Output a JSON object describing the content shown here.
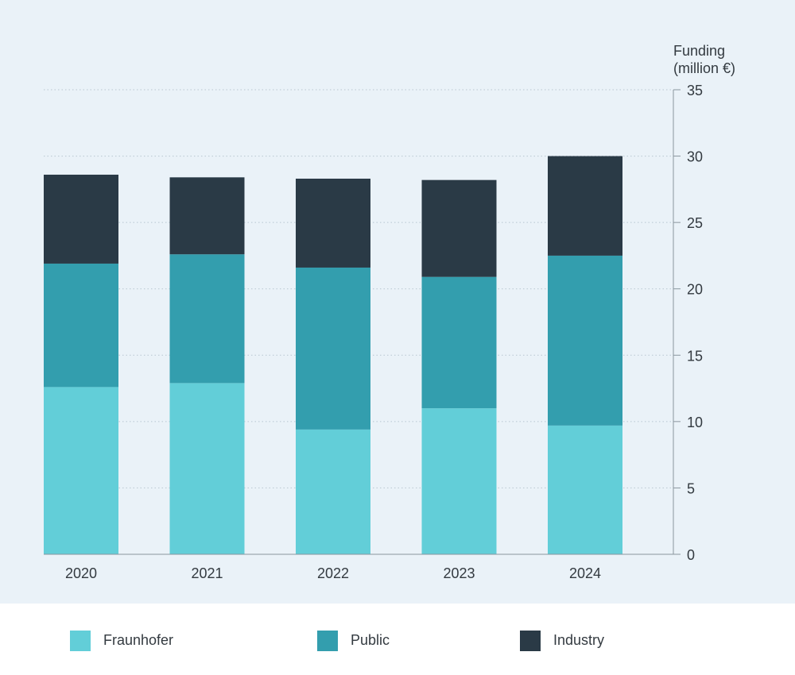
{
  "chart_data": {
    "type": "bar",
    "stacked": true,
    "y_axis_title": [
      "Funding",
      "(million €)"
    ],
    "categories": [
      "2020",
      "2021",
      "2022",
      "2023",
      "2024"
    ],
    "series": [
      {
        "name": "Fraunhofer",
        "color": "#62ced8",
        "values": [
          12.6,
          12.9,
          9.4,
          11.0,
          9.7
        ]
      },
      {
        "name": "Public",
        "color": "#339eae",
        "values": [
          9.3,
          9.7,
          12.2,
          9.9,
          12.8
        ]
      },
      {
        "name": "Industry",
        "color": "#2a3a46",
        "values": [
          6.7,
          5.8,
          6.7,
          7.3,
          7.5
        ]
      }
    ],
    "ylim": [
      0,
      35
    ],
    "yticks": [
      0,
      5,
      10,
      15,
      20,
      25,
      30,
      35
    ],
    "grid": true,
    "axis_side": "right",
    "legend_position": "bottom"
  }
}
